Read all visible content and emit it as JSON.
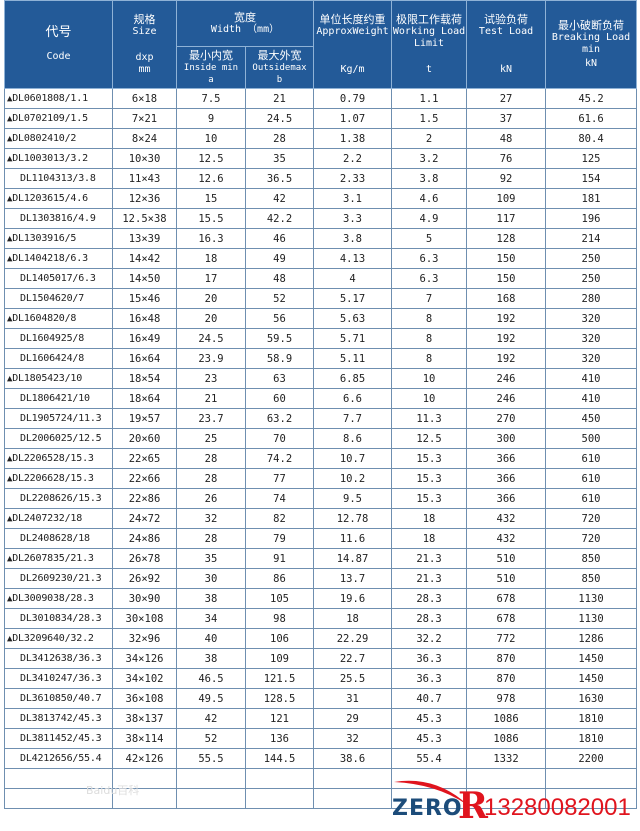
{
  "header": {
    "code_cn": "代号",
    "code_en": "Code",
    "size_cn": "规格",
    "size_en": "Size",
    "size_unit": "dxp mm",
    "width_cn": "宽度",
    "width_en": "Width （mm）",
    "inside_cn": "最小内宽",
    "inside_en": "Inside min a",
    "outside_cn": "最大外宽",
    "outside_en": "Outsidemax b",
    "weight_cn": "单位长度约重",
    "weight_en": "ApproxWeight",
    "weight_unit": "Kg/m",
    "wll_cn": "极限工作载荷",
    "wll_en": "Working Load Limit",
    "wll_unit": "t",
    "test_cn": "试验负荷",
    "test_en": "Test Load",
    "test_unit": "kN",
    "break_cn": "最小破断负荷",
    "break_en": "Breaking Load min",
    "break_unit": "kN"
  },
  "rows": [
    {
      "mark": true,
      "code": "DL0601808/1.1",
      "size": "6×18",
      "a": "7.5",
      "b": "21",
      "w": "0.79",
      "wll": "1.1",
      "test": "27",
      "brk": "45.2"
    },
    {
      "mark": true,
      "code": "DL0702109/1.5",
      "size": "7×21",
      "a": "9",
      "b": "24.5",
      "w": "1.07",
      "wll": "1.5",
      "test": "37",
      "brk": "61.6"
    },
    {
      "mark": true,
      "code": "DL0802410/2",
      "size": "8×24",
      "a": "10",
      "b": "28",
      "w": "1.38",
      "wll": "2",
      "test": "48",
      "brk": "80.4"
    },
    {
      "mark": true,
      "code": "DL1003013/3.2",
      "size": "10×30",
      "a": "12.5",
      "b": "35",
      "w": "2.2",
      "wll": "3.2",
      "test": "76",
      "brk": "125"
    },
    {
      "mark": false,
      "code": "DL1104313/3.8",
      "size": "11×43",
      "a": "12.6",
      "b": "36.5",
      "w": "2.33",
      "wll": "3.8",
      "test": "92",
      "brk": "154"
    },
    {
      "mark": true,
      "code": "DL1203615/4.6",
      "size": "12×36",
      "a": "15",
      "b": "42",
      "w": "3.1",
      "wll": "4.6",
      "test": "109",
      "brk": "181"
    },
    {
      "mark": false,
      "code": "DL1303816/4.9",
      "size": "12.5×38",
      "a": "15.5",
      "b": "42.2",
      "w": "3.3",
      "wll": "4.9",
      "test": "117",
      "brk": "196"
    },
    {
      "mark": true,
      "code": "DL1303916/5",
      "size": "13×39",
      "a": "16.3",
      "b": "46",
      "w": "3.8",
      "wll": "5",
      "test": "128",
      "brk": "214"
    },
    {
      "mark": true,
      "code": "DL1404218/6.3",
      "size": "14×42",
      "a": "18",
      "b": "49",
      "w": "4.13",
      "wll": "6.3",
      "test": "150",
      "brk": "250"
    },
    {
      "mark": false,
      "code": "DL1405017/6.3",
      "size": "14×50",
      "a": "17",
      "b": "48",
      "w": "4",
      "wll": "6.3",
      "test": "150",
      "brk": "250"
    },
    {
      "mark": false,
      "code": "DL1504620/7",
      "size": "15×46",
      "a": "20",
      "b": "52",
      "w": "5.17",
      "wll": "7",
      "test": "168",
      "brk": "280"
    },
    {
      "mark": true,
      "code": "DL1604820/8",
      "size": "16×48",
      "a": "20",
      "b": "56",
      "w": "5.63",
      "wll": "8",
      "test": "192",
      "brk": "320"
    },
    {
      "mark": false,
      "code": "DL1604925/8",
      "size": "16×49",
      "a": "24.5",
      "b": "59.5",
      "w": "5.71",
      "wll": "8",
      "test": "192",
      "brk": "320"
    },
    {
      "mark": false,
      "code": "DL1606424/8",
      "size": "16×64",
      "a": "23.9",
      "b": "58.9",
      "w": "5.11",
      "wll": "8",
      "test": "192",
      "brk": "320"
    },
    {
      "mark": true,
      "code": "DL1805423/10",
      "size": "18×54",
      "a": "23",
      "b": "63",
      "w": "6.85",
      "wll": "10",
      "test": "246",
      "brk": "410"
    },
    {
      "mark": false,
      "code": "DL1806421/10",
      "size": "18×64",
      "a": "21",
      "b": "60",
      "w": "6.6",
      "wll": "10",
      "test": "246",
      "brk": "410"
    },
    {
      "mark": false,
      "code": "DL1905724/11.3",
      "size": "19×57",
      "a": "23.7",
      "b": "63.2",
      "w": "7.7",
      "wll": "11.3",
      "test": "270",
      "brk": "450"
    },
    {
      "mark": false,
      "code": "DL2006025/12.5",
      "size": "20×60",
      "a": "25",
      "b": "70",
      "w": "8.6",
      "wll": "12.5",
      "test": "300",
      "brk": "500"
    },
    {
      "mark": true,
      "code": "DL2206528/15.3",
      "size": "22×65",
      "a": "28",
      "b": "74.2",
      "w": "10.7",
      "wll": "15.3",
      "test": "366",
      "brk": "610"
    },
    {
      "mark": true,
      "code": "DL2206628/15.3",
      "size": "22×66",
      "a": "28",
      "b": "77",
      "w": "10.2",
      "wll": "15.3",
      "test": "366",
      "brk": "610"
    },
    {
      "mark": false,
      "code": "DL2208626/15.3",
      "size": "22×86",
      "a": "26",
      "b": "74",
      "w": "9.5",
      "wll": "15.3",
      "test": "366",
      "brk": "610"
    },
    {
      "mark": true,
      "code": "DL2407232/18",
      "size": "24×72",
      "a": "32",
      "b": "82",
      "w": "12.78",
      "wll": "18",
      "test": "432",
      "brk": "720"
    },
    {
      "mark": false,
      "code": "DL2408628/18",
      "size": "24×86",
      "a": "28",
      "b": "79",
      "w": "11.6",
      "wll": "18",
      "test": "432",
      "brk": "720"
    },
    {
      "mark": true,
      "code": "DL2607835/21.3",
      "size": "26×78",
      "a": "35",
      "b": "91",
      "w": "14.87",
      "wll": "21.3",
      "test": "510",
      "brk": "850"
    },
    {
      "mark": false,
      "code": "DL2609230/21.3",
      "size": "26×92",
      "a": "30",
      "b": "86",
      "w": "13.7",
      "wll": "21.3",
      "test": "510",
      "brk": "850"
    },
    {
      "mark": true,
      "code": "DL3009038/28.3",
      "size": "30×90",
      "a": "38",
      "b": "105",
      "w": "19.6",
      "wll": "28.3",
      "test": "678",
      "brk": "1130"
    },
    {
      "mark": false,
      "code": "DL3010834/28.3",
      "size": "30×108",
      "a": "34",
      "b": "98",
      "w": "18",
      "wll": "28.3",
      "test": "678",
      "brk": "1130"
    },
    {
      "mark": true,
      "code": "DL3209640/32.2",
      "size": "32×96",
      "a": "40",
      "b": "106",
      "w": "22.29",
      "wll": "32.2",
      "test": "772",
      "brk": "1286"
    },
    {
      "mark": false,
      "code": "DL3412638/36.3",
      "size": "34×126",
      "a": "38",
      "b": "109",
      "w": "22.7",
      "wll": "36.3",
      "test": "870",
      "brk": "1450"
    },
    {
      "mark": false,
      "code": "DL3410247/36.3",
      "size": "34×102",
      "a": "46.5",
      "b": "121.5",
      "w": "25.5",
      "wll": "36.3",
      "test": "870",
      "brk": "1450"
    },
    {
      "mark": false,
      "code": "DL3610850/40.7",
      "size": "36×108",
      "a": "49.5",
      "b": "128.5",
      "w": "31",
      "wll": "40.7",
      "test": "978",
      "brk": "1630"
    },
    {
      "mark": false,
      "code": "DL3813742/45.3",
      "size": "38×137",
      "a": "42",
      "b": "121",
      "w": "29",
      "wll": "45.3",
      "test": "1086",
      "brk": "1810"
    },
    {
      "mark": false,
      "code": "DL3811452/45.3",
      "size": "38×114",
      "a": "52",
      "b": "136",
      "w": "32",
      "wll": "45.3",
      "test": "1086",
      "brk": "1810"
    },
    {
      "mark": false,
      "code": "DL4212656/55.4",
      "size": "42×126",
      "a": "55.5",
      "b": "144.5",
      "w": "38.6",
      "wll": "55.4",
      "test": "1332",
      "brk": "2200"
    }
  ],
  "empty_rows": 2,
  "mark_symbol": "▲",
  "logo": {
    "text": "ZERO",
    "letter": "R",
    "phone": "13280082001",
    "text_color": "#1c4c7a",
    "accent_color": "#e0141e"
  },
  "watermark": "Baidu百科",
  "colors": {
    "header_bg": "#235a98",
    "grid": "#6f8fb0"
  }
}
